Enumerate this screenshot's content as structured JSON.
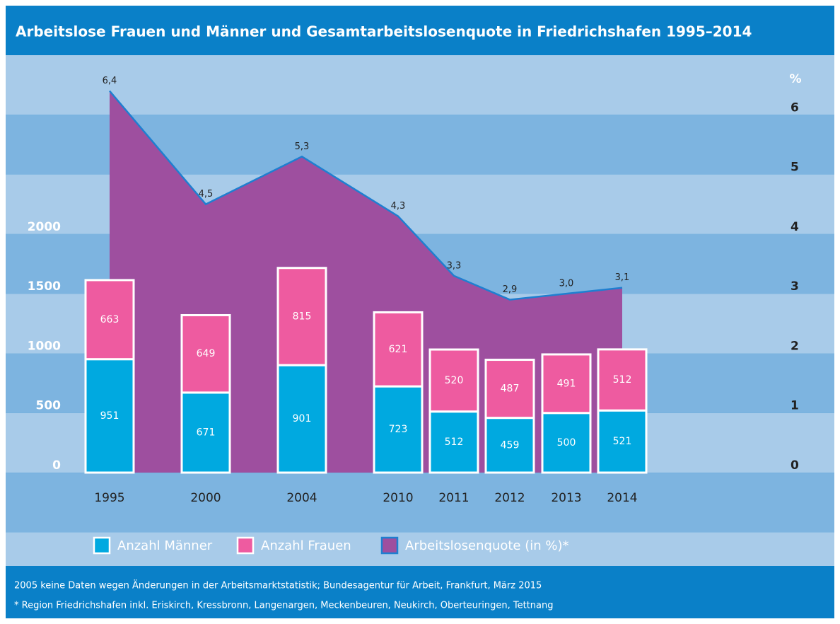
{
  "chart_data": {
    "type": "bar",
    "title": "Arbeitslose Frauen und Männer und Gesamtarbeitslosenquote in Friedrichshafen 1995–2014",
    "categories": [
      "1995",
      "2000",
      "2004",
      "2010",
      "2011",
      "2012",
      "2013",
      "2014"
    ],
    "series": [
      {
        "name": "Anzahl Männer",
        "type": "bar",
        "color": "#00a9e0",
        "values": [
          951,
          671,
          901,
          723,
          512,
          459,
          500,
          521
        ]
      },
      {
        "name": "Anzahl Frauen",
        "type": "bar",
        "color": "#ee5ba0",
        "values": [
          663,
          649,
          815,
          621,
          520,
          487,
          491,
          512
        ]
      },
      {
        "name": "Arbeitslosenquote (in %)*",
        "type": "area",
        "axis": "y2",
        "color": "#9e4f9f",
        "line_color": "#1f7fd0",
        "values": [
          6.4,
          4.5,
          5.3,
          4.3,
          3.3,
          2.9,
          3.0,
          3.1
        ],
        "value_labels": [
          "6,4",
          "4,5",
          "5,3",
          "4,3",
          "3,3",
          "2,9",
          "3,0",
          "3,1"
        ]
      }
    ],
    "stacked": true,
    "ylim": [
      0,
      3500
    ],
    "yticks": [
      0,
      500,
      1000,
      1500,
      2000
    ],
    "y2lim": [
      0,
      7
    ],
    "y2ticks": [
      0,
      1,
      2,
      3,
      4,
      5,
      6
    ],
    "y2label": "%",
    "notes": [
      "2005 keine Daten wegen Änderungen in der Arbeitsmarktstatistik; Bundesagentur für Arbeit, Frankfurt, März 2015",
      "* Region Friedrichshafen inkl. Eriskirch, Kressbronn, Langenargen, Meckenbeuren, Neukirch, Oberteuringen, Tettnang"
    ]
  }
}
